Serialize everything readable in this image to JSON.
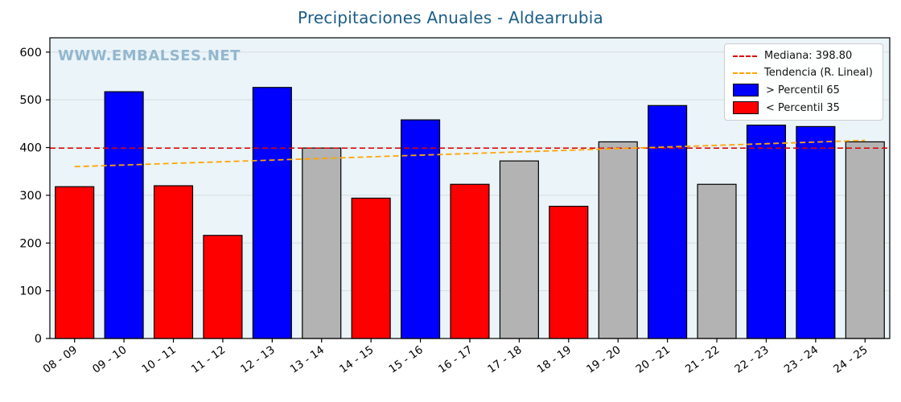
{
  "chart_data": {
    "type": "bar",
    "title": "Precipitaciones Anuales - Aldearrubia",
    "watermark": "WWW.EMBALSES.NET",
    "categories": [
      "08 - 09",
      "09 - 10",
      "10 - 11",
      "11 - 12",
      "12 - 13",
      "13 - 14",
      "14 - 15",
      "15 - 16",
      "16 - 17",
      "17 - 18",
      "18 - 19",
      "19 - 20",
      "20 - 21",
      "21 - 22",
      "22 - 23",
      "23 - 24",
      "24 - 25"
    ],
    "values": [
      318,
      517,
      320,
      216,
      526,
      399,
      294,
      458,
      323,
      372,
      277,
      412,
      488,
      323,
      447,
      444,
      412
    ],
    "bar_color_keys": [
      "red",
      "blue",
      "red",
      "red",
      "blue",
      "gray",
      "red",
      "blue",
      "red",
      "gray",
      "red",
      "gray",
      "blue",
      "gray",
      "blue",
      "blue",
      "gray"
    ],
    "ylim": [
      0,
      630
    ],
    "yticks": [
      0,
      100,
      200,
      300,
      400,
      500,
      600
    ],
    "grid": true,
    "legend_position": "upper right",
    "median": {
      "label": "Mediana: 398.80",
      "value": 398.8
    },
    "trend": {
      "label": "Tendencia (R. Lineal)",
      "start_value": 360,
      "end_value": 415
    },
    "legend": {
      "above_label": "> Percentil 65",
      "below_label": "< Percentil 35"
    },
    "colors": {
      "blue": "#0000ff",
      "red": "#ff0000",
      "gray": "#b3b3b3",
      "median_line": "#dd0000",
      "trend_line": "#ffa500",
      "plot_bg": "#eaf4f9",
      "grid_line": "#d8dde0",
      "title": "#1b5d87",
      "watermark": "#93b7cf",
      "bar_edge": "#000000"
    }
  }
}
